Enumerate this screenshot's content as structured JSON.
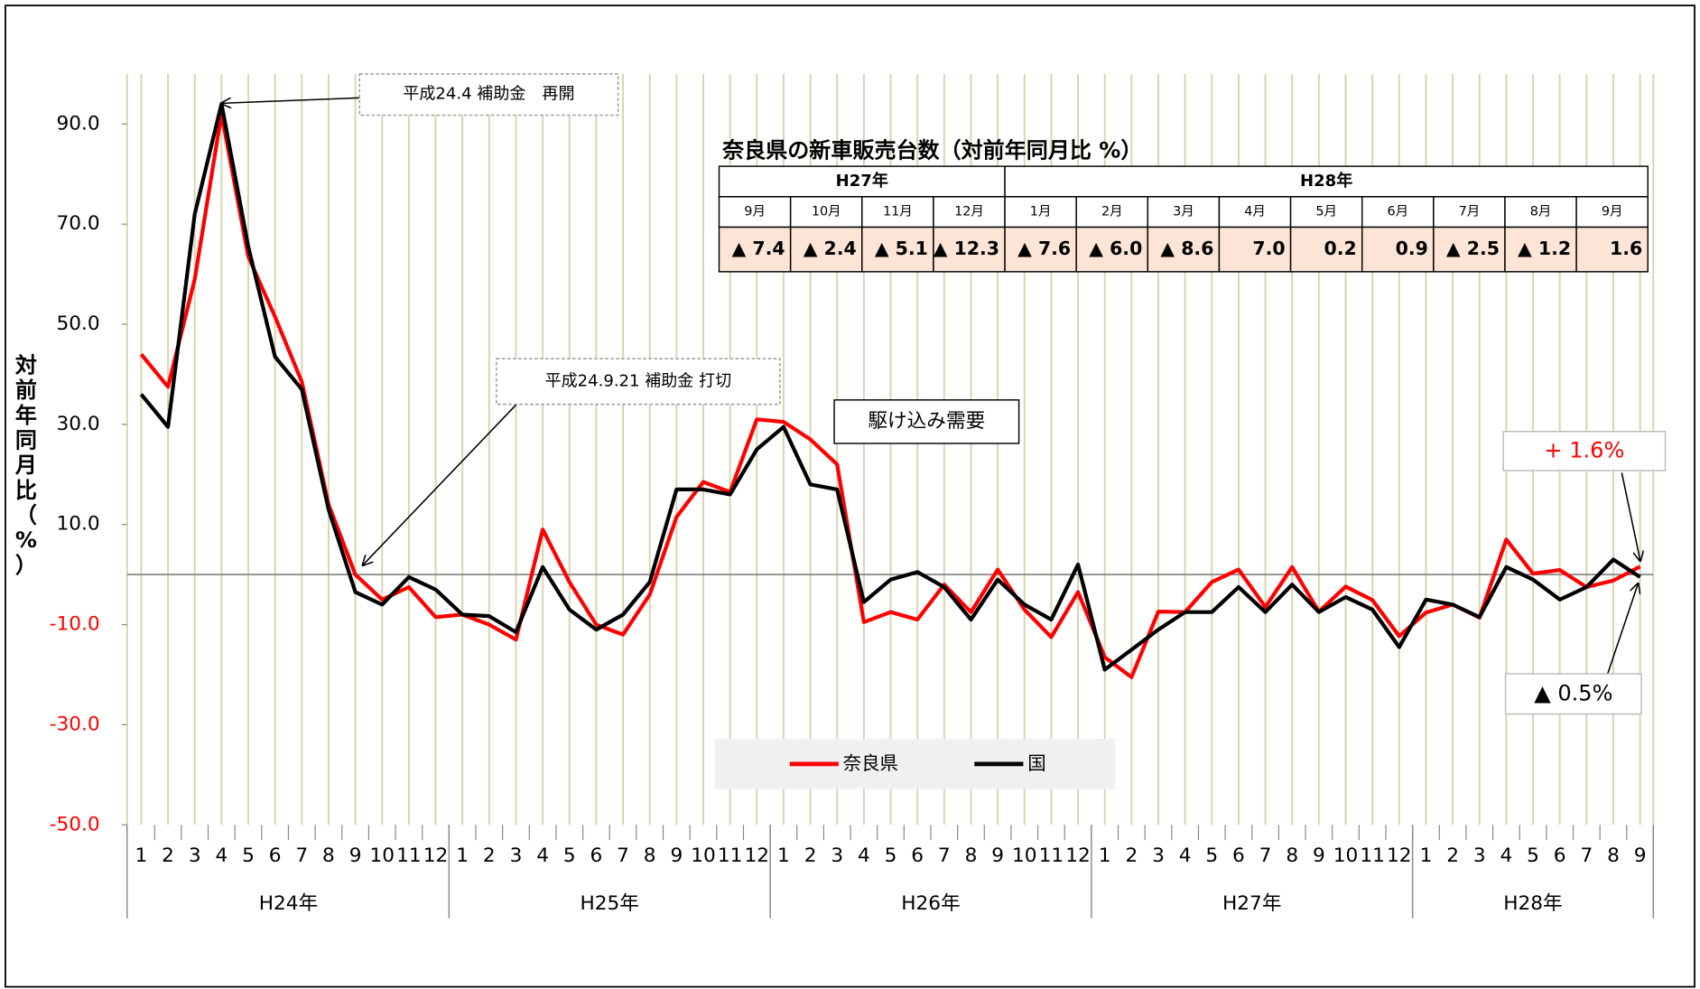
{
  "chart_data": {
    "type": "line",
    "y_axis_label": "対前年同月比（%）",
    "category_groups": [
      {
        "label": "H24年",
        "categories": [
          "1",
          "2",
          "3",
          "4",
          "5",
          "6",
          "7",
          "8",
          "9",
          "10",
          "11",
          "12"
        ]
      },
      {
        "label": "H25年",
        "categories": [
          "1",
          "2",
          "3",
          "4",
          "5",
          "6",
          "7",
          "8",
          "9",
          "10",
          "11",
          "12"
        ]
      },
      {
        "label": "H26年",
        "categories": [
          "1",
          "2",
          "3",
          "4",
          "5",
          "6",
          "7",
          "8",
          "9",
          "10",
          "11",
          "12"
        ]
      },
      {
        "label": "H27年",
        "categories": [
          "1",
          "2",
          "3",
          "4",
          "5",
          "6",
          "7",
          "8",
          "9",
          "10",
          "11",
          "12"
        ]
      },
      {
        "label": "H28年",
        "categories": [
          "1",
          "2",
          "3",
          "4",
          "5",
          "6",
          "7",
          "8",
          "9"
        ]
      }
    ],
    "series": [
      {
        "name": "奈良県",
        "color": "#ff0000",
        "values": [
          44,
          37.5,
          59,
          92,
          63.5,
          51.5,
          38.5,
          14,
          0,
          -5,
          -2.5,
          -8.5,
          -8,
          -10,
          -13,
          9,
          -1.5,
          -10,
          -12,
          -4,
          11.5,
          18.5,
          16.5,
          31,
          30.5,
          27,
          22,
          -9.5,
          -7.5,
          -9,
          -2,
          -7.5,
          1,
          -7,
          -12.5,
          -3.5,
          -16.5,
          -20.5,
          -7.4,
          -7.5,
          -1.5,
          1,
          -6.5,
          1.5,
          -7.4,
          -2.4,
          -5.1,
          -12.3,
          -7.6,
          -6.0,
          -8.6,
          7.0,
          0.2,
          0.9,
          -2.5,
          -1.2,
          1.6
        ]
      },
      {
        "name": "国",
        "color": "#000000",
        "values": [
          36,
          29.5,
          72,
          94,
          65.5,
          43.5,
          37,
          13,
          -3.5,
          -6,
          -0.5,
          -3,
          -8,
          -8.3,
          -11.5,
          1.5,
          -7,
          -11,
          -8,
          -1.5,
          17,
          17,
          16,
          25,
          29.5,
          18,
          17,
          -5.5,
          -1,
          0.5,
          -2.5,
          -9,
          -1,
          -6,
          -9,
          2,
          -19,
          -15,
          -11,
          -7.5,
          -7.5,
          -2.5,
          -7.5,
          -2,
          -7.5,
          -4.5,
          -7,
          -14.5,
          -5,
          -6,
          -8.5,
          1.5,
          -1,
          -5,
          -2.5,
          3,
          -0.5
        ]
      }
    ],
    "ylim": [
      -50,
      100
    ],
    "yticks": [
      {
        "value": 90,
        "label": "90.0"
      },
      {
        "value": 70,
        "label": "70.0"
      },
      {
        "value": 50,
        "label": "50.0"
      },
      {
        "value": 30,
        "label": "30.0"
      },
      {
        "value": 10,
        "label": "10.0"
      },
      {
        "value": -10,
        "label": "-10.0"
      },
      {
        "value": -30,
        "label": "-30.0"
      },
      {
        "value": -50,
        "label": "-50.0"
      }
    ],
    "negative_tick_color": "#ff0000",
    "grid_color": "#d9d3b0",
    "legend": "bottom",
    "annotations": [
      {
        "text": "平成24.4 補助金　再開"
      },
      {
        "text": "平成24.9.21 補助金 打切"
      },
      {
        "text": "駆け込み需要"
      },
      {
        "text": "+ 1.6%",
        "color": "#ff0000"
      },
      {
        "text": "▲ 0.5%",
        "color": "#000000"
      }
    ]
  },
  "table": {
    "title": "奈良県の新車販売台数（対前年同月比 %）",
    "groups": [
      {
        "label": "H27年",
        "months": [
          "9月",
          "10月",
          "11月",
          "12月"
        ],
        "values": [
          "▲ 7.4",
          "▲ 2.4",
          "▲ 5.1",
          "▲ 12.3"
        ]
      },
      {
        "label": "H28年",
        "months": [
          "1月",
          "2月",
          "3月",
          "4月",
          "5月",
          "6月",
          "7月",
          "8月",
          "9月"
        ],
        "values": [
          "▲ 7.6",
          "▲ 6.0",
          "▲ 8.6",
          "7.0",
          "0.2",
          "0.9",
          "▲ 2.5",
          "▲ 1.2",
          "1.6"
        ]
      }
    ]
  }
}
